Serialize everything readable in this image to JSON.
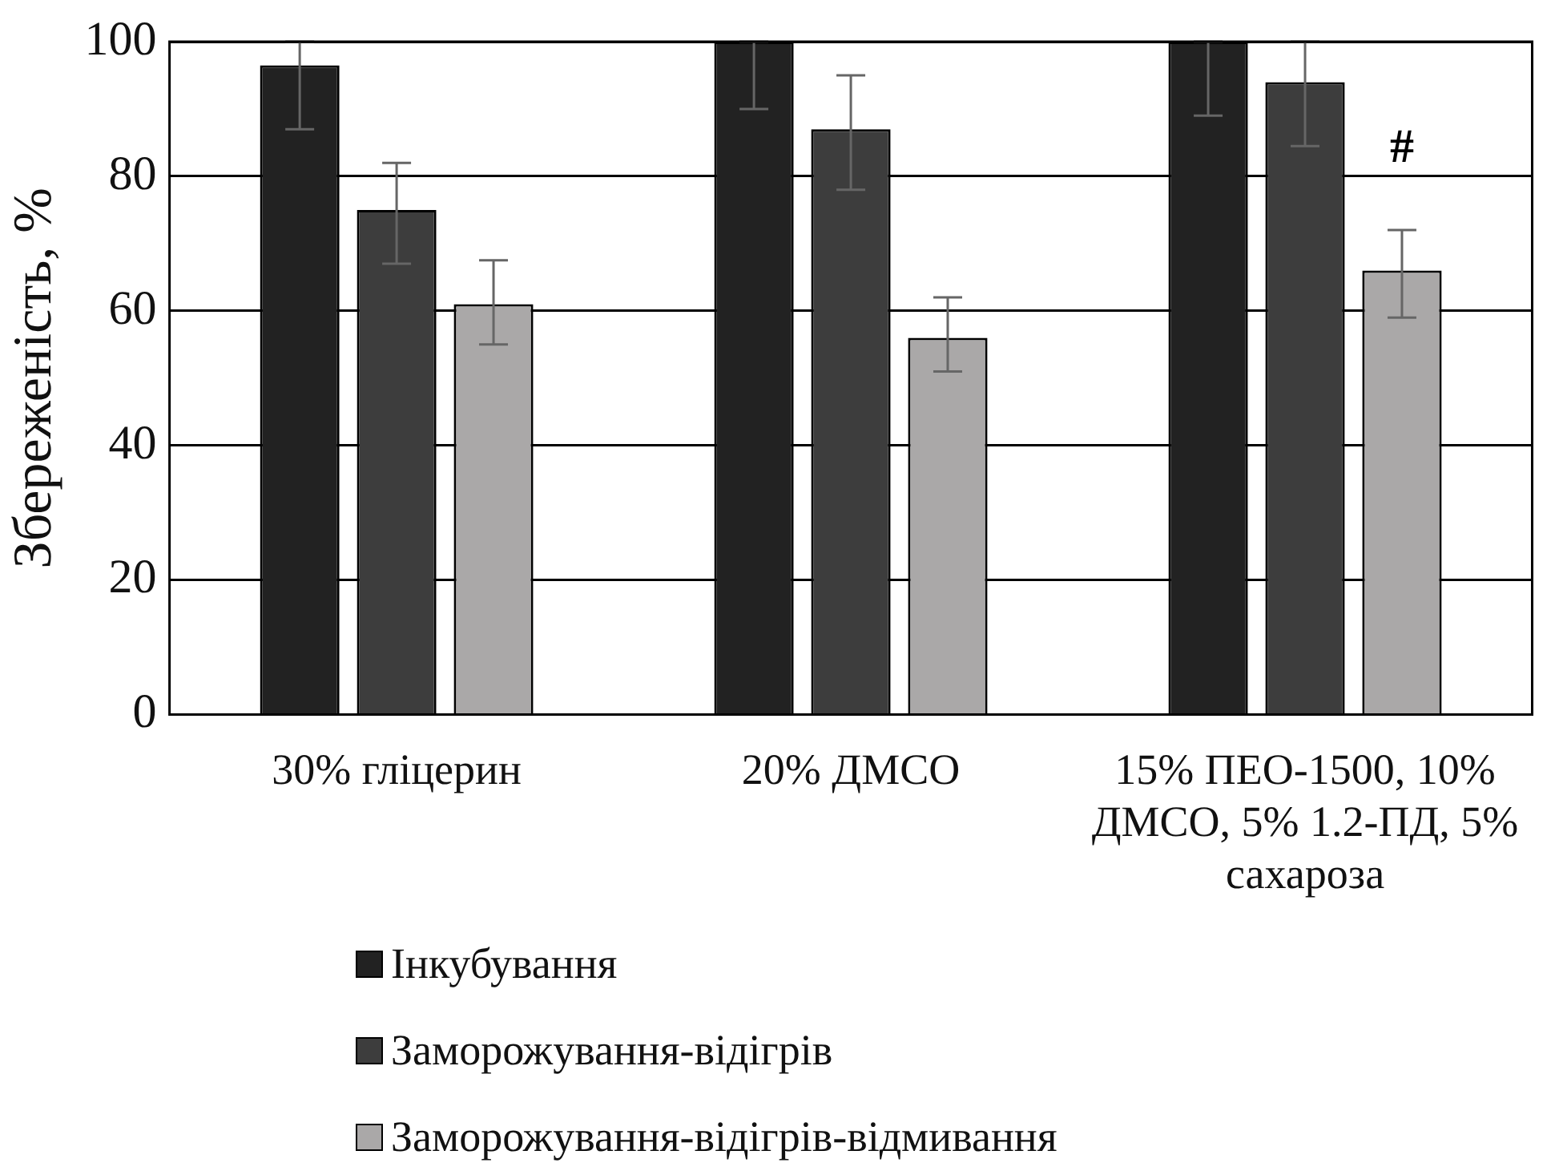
{
  "chart_data": {
    "type": "bar",
    "ylabel": "Збереженість, %",
    "categories": [
      "30% гліцерин",
      "20% ДМСО",
      "15% ПЕО-1500, 10% ДМСО, 5% 1.2-ПД, 5% сахароза"
    ],
    "series": [
      {
        "name": "Інкубування",
        "color": "#222222",
        "values": [
          96.5,
          100,
          100
        ],
        "errors": [
          [
            87,
            100
          ],
          [
            90,
            100
          ],
          [
            89,
            100
          ]
        ]
      },
      {
        "name": "Заморожування-відігрів",
        "color": "#3d3d3d",
        "values": [
          75,
          87,
          94
        ],
        "errors": [
          [
            67,
            82
          ],
          [
            78,
            95
          ],
          [
            84.5,
            100
          ]
        ]
      },
      {
        "name": "Заморожування-відігрів-відмивання",
        "color": "#aaa8a8",
        "values": [
          61,
          56,
          66
        ],
        "errors": [
          [
            55,
            67.5
          ],
          [
            51,
            62
          ],
          [
            59,
            72
          ]
        ]
      }
    ],
    "ylim": [
      0,
      100
    ],
    "yticks": [
      0,
      20,
      40,
      60,
      80,
      100
    ],
    "grid": "y",
    "legend": "bottom left",
    "annotations": [
      {
        "text": "#",
        "x": "15% ПЕО-1500, 10% ДМСО, 5% 1.2-ПД, 5% сахароза",
        "y": 84
      }
    ]
  }
}
